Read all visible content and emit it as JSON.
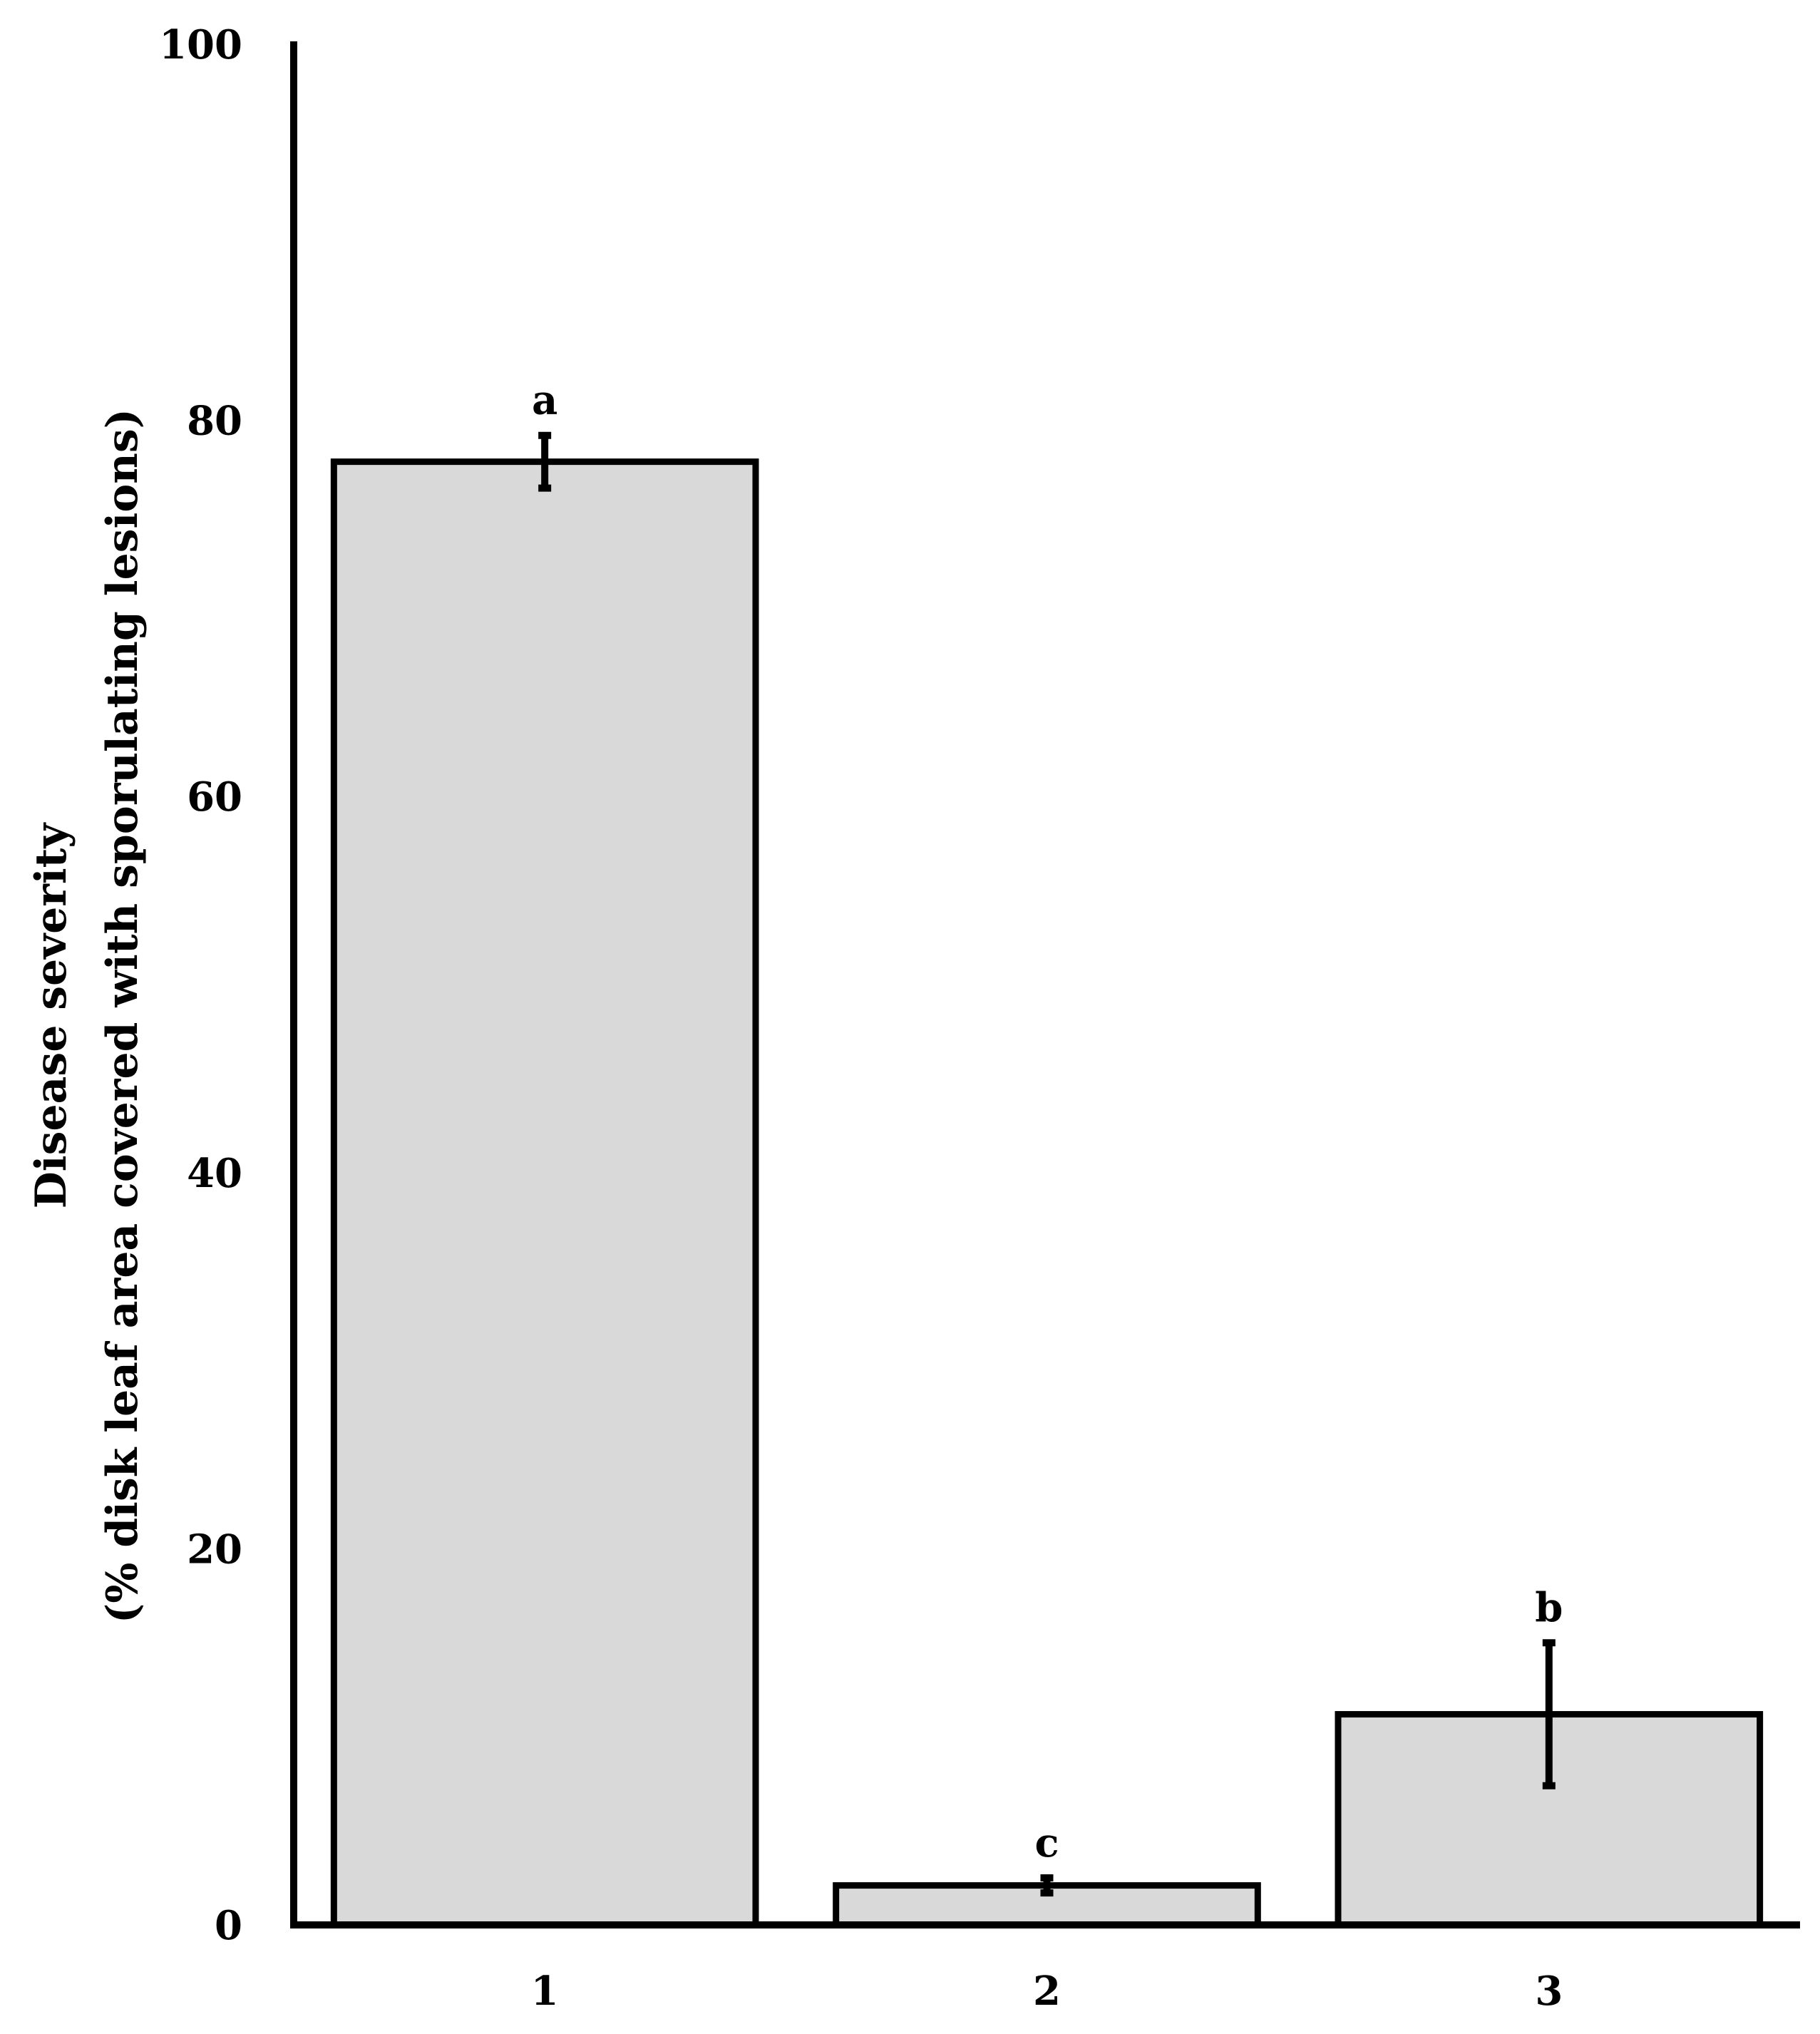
{
  "chart_data": {
    "type": "bar",
    "categories": [
      "1",
      "2",
      "3"
    ],
    "values": [
      77.8,
      2.1,
      11.2
    ],
    "error": [
      1.4,
      0.4,
      3.8
    ],
    "significance_labels": [
      "a",
      "c",
      "b"
    ],
    "ylabel_line1": "Disease severity",
    "ylabel_line2": "(% disk leaf area covered with sporulating lesions)",
    "xlabel": "",
    "ylim": [
      0,
      100
    ],
    "yticks": [
      0,
      20,
      40,
      60,
      80,
      100
    ],
    "grid": false,
    "colors": {
      "bar_fill": "#d9d9d9",
      "bar_stroke": "#000000",
      "axis": "#000000"
    }
  }
}
